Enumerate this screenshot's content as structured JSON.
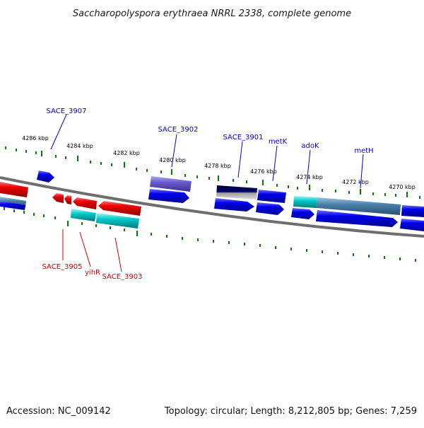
{
  "header": {
    "title": "Saccharopolyspora erythraea NRRL 2338, complete genome"
  },
  "footer": {
    "accession": "Accession: NC_009142",
    "summary": "Topology: circular; Length: 8,212,805 bp; Genes: 7,259"
  },
  "colors": {
    "forward_gene": "#0000ee",
    "reverse_gene": "#ee0000",
    "cyan_gene": "#00c8c8",
    "purple_gene": "#6a5acd",
    "navy_gene": "#000066",
    "steel_gene": "#4a7fa8",
    "backbone": "#808080",
    "tick": "#008000",
    "forward_label": "#0000cc",
    "reverse_label": "#cc0000"
  },
  "axis": {
    "unit": "kbp",
    "ticks": [
      "4286 kbp",
      "4284 kbp",
      "4282 kbp",
      "4280 kbp",
      "4278 kbp",
      "4276 kbp",
      "4274 kbp",
      "4272 kbp",
      "4270 kbp"
    ]
  },
  "labels": {
    "top": [
      "SACE_3907",
      "SACE_3902",
      "SACE_3901",
      "metK",
      "adoK",
      "metH"
    ],
    "bottom": [
      "SACE_3905",
      "yihR",
      "SACE_3903"
    ]
  }
}
